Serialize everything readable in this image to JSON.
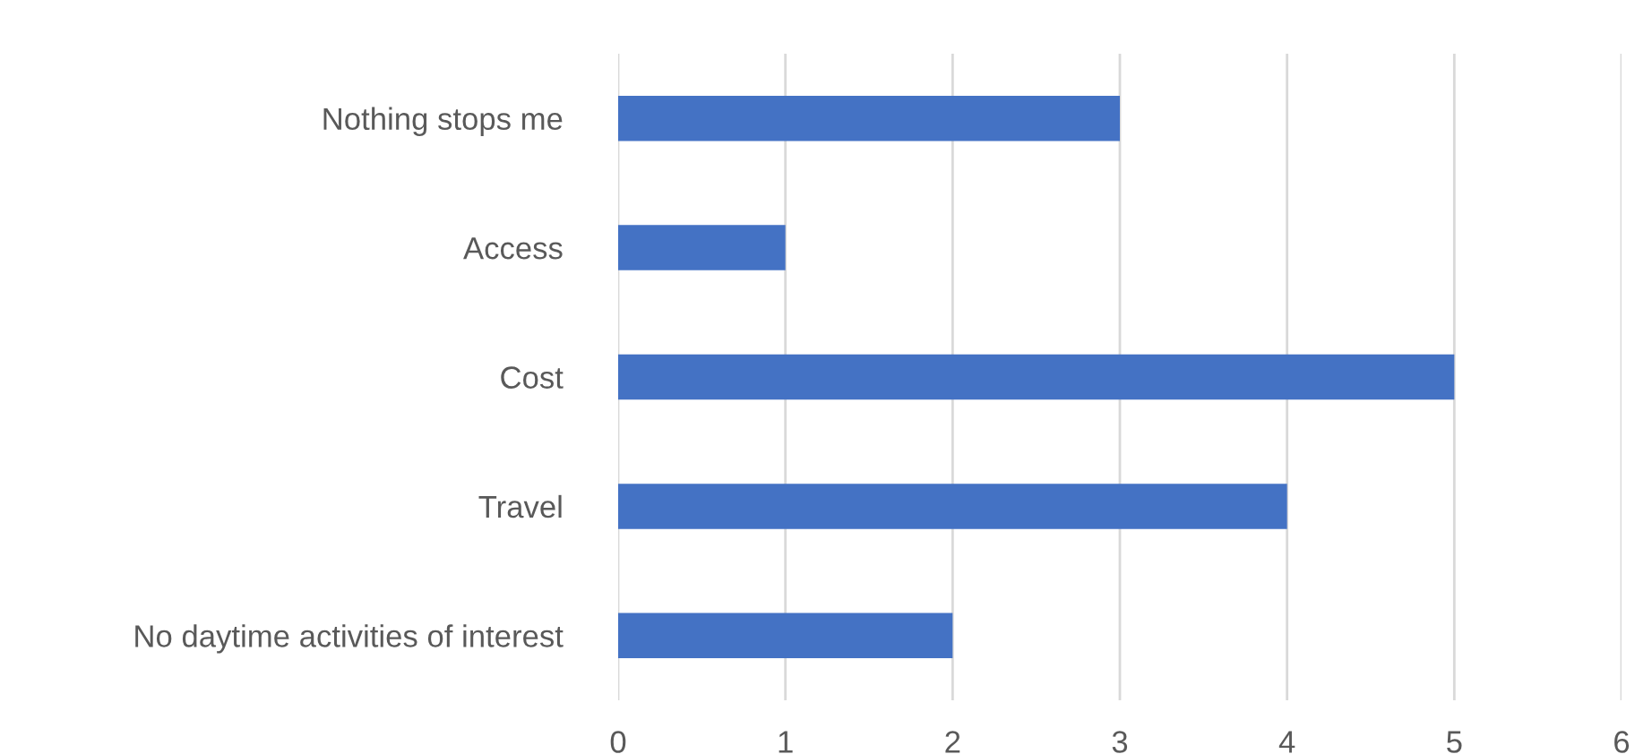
{
  "chart_data": {
    "type": "bar",
    "orientation": "horizontal",
    "categories": [
      "Nothing stops me",
      "Access",
      "Cost",
      "Travel",
      "No daytime activities of interest"
    ],
    "values": [
      3,
      1,
      5,
      4,
      2
    ],
    "color": "#4472c4",
    "xlim": [
      0,
      6
    ],
    "xticks": [
      0,
      1,
      2,
      3,
      4,
      5,
      6
    ],
    "grid": "x",
    "legend": false
  }
}
